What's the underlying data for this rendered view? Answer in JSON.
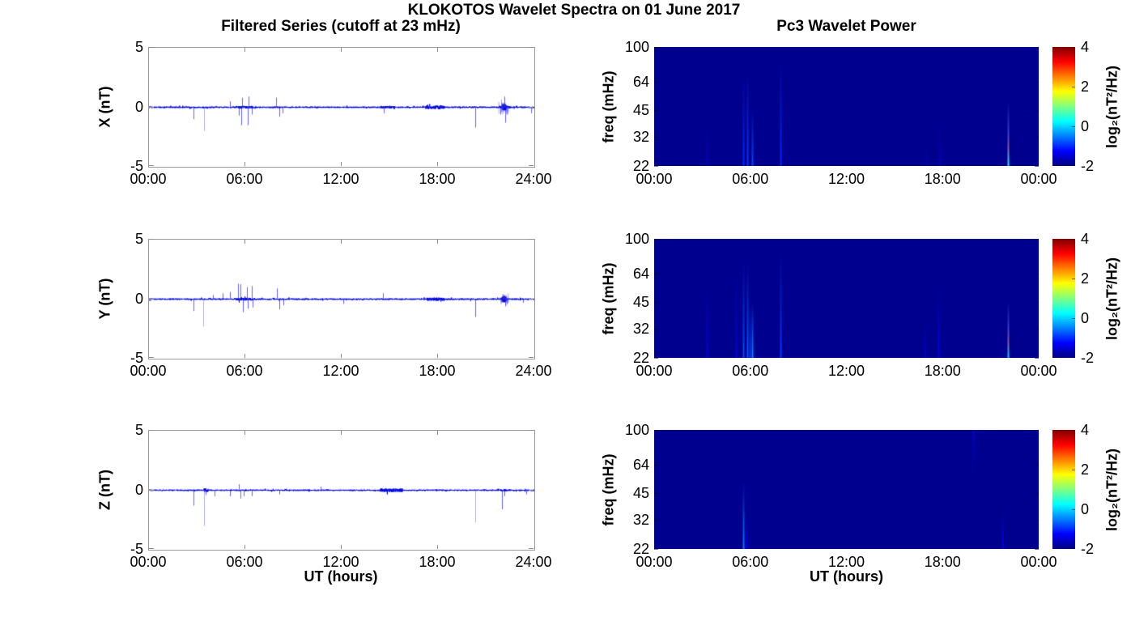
{
  "figure": {
    "title": "KLOKOTOS Wavelet Spectra on 01 June 2017",
    "left_column_title": "Filtered Series (cutoff at 23 mHz)",
    "right_column_title": "Pc3 Wavelet Power",
    "xlabel": "UT (hours)"
  },
  "chart_data": {
    "type": "multi-panel",
    "layout_hint": "3 rows x 2 columns; left column band-pass filtered magnetometer time series, right column wavelet power spectrograms with jet colorbars",
    "time_axis": {
      "range_hours": [
        0,
        24
      ],
      "ticks_left": [
        "00:00",
        "06:00",
        "12:00",
        "18:00",
        "24:00"
      ],
      "ticks_right": [
        "00:00",
        "06:00",
        "12:00",
        "18:00",
        "00:00"
      ],
      "xlabel": "UT (hours)"
    },
    "timeseries_yaxis": {
      "ylim": [
        -5,
        5
      ],
      "ticks": [
        "5",
        "0",
        "-5"
      ]
    },
    "freq_axis": {
      "ylabel": "freq (mHz)",
      "scale": "log",
      "flim": [
        22,
        100
      ],
      "ticks": [
        100,
        64,
        45,
        32,
        22
      ]
    },
    "colorbar": {
      "label": "log₂(nT²/Hz)",
      "colormap": "jet",
      "range": [
        -2,
        4
      ],
      "ticks": [
        4,
        2,
        0,
        -2
      ]
    },
    "colors": {
      "line": "#0008DD",
      "spectrogram_background": "#00008F",
      "axis_box": "#9a9a9a"
    },
    "timeseries": [
      {
        "component": "X",
        "ylabel": "X (nT)",
        "type": "line",
        "noise_amp": 0.06,
        "spikes": [
          {
            "t": 2.75,
            "a": -1.0
          },
          {
            "t": 3.45,
            "a": -2.0
          },
          {
            "t": 5.05,
            "a": 0.5
          },
          {
            "t": 5.6,
            "a": -0.7
          },
          {
            "t": 5.75,
            "a": -1.5
          },
          {
            "t": 5.8,
            "a": 0.8
          },
          {
            "t": 6.15,
            "a": -1.5
          },
          {
            "t": 6.2,
            "a": 0.9
          },
          {
            "t": 6.4,
            "a": -0.6
          },
          {
            "t": 7.9,
            "a": 0.8
          },
          {
            "t": 8.1,
            "a": -0.8
          },
          {
            "t": 8.3,
            "a": -0.5
          },
          {
            "t": 14.6,
            "a": -0.5
          },
          {
            "t": 20.3,
            "a": -1.7
          },
          {
            "t": 21.9,
            "a": -0.6
          },
          {
            "t": 22.15,
            "a": 0.9
          },
          {
            "t": 22.2,
            "a": -1.3
          },
          {
            "t": 23.8,
            "a": -0.5
          }
        ],
        "dense_regions": [
          {
            "t0": 5.4,
            "t1": 6.5,
            "amp": 0.11
          },
          {
            "t0": 14.4,
            "t1": 15.3,
            "amp": 0.1
          },
          {
            "t0": 17.2,
            "t1": 18.4,
            "amp": 0.15
          },
          {
            "t0": 21.8,
            "t1": 22.5,
            "amp": 0.12
          }
        ],
        "burst": {
          "t": 22.12,
          "amp": 0.7,
          "halfwidth": 0.15
        }
      },
      {
        "component": "Y",
        "ylabel": "Y (nT)",
        "type": "line",
        "noise_amp": 0.06,
        "spikes": [
          {
            "t": 2.75,
            "a": -1.0
          },
          {
            "t": 3.4,
            "a": -2.3
          },
          {
            "t": 4.0,
            "a": 0.35
          },
          {
            "t": 4.6,
            "a": 0.5
          },
          {
            "t": 5.05,
            "a": 0.6
          },
          {
            "t": 5.55,
            "a": 1.3
          },
          {
            "t": 5.7,
            "a": 1.25
          },
          {
            "t": 5.85,
            "a": -1.1
          },
          {
            "t": 6.1,
            "a": 1.0
          },
          {
            "t": 6.15,
            "a": -0.8
          },
          {
            "t": 6.4,
            "a": 1.1
          },
          {
            "t": 6.45,
            "a": -0.7
          },
          {
            "t": 7.95,
            "a": 0.9
          },
          {
            "t": 8.1,
            "a": -0.85
          },
          {
            "t": 8.35,
            "a": -0.5
          },
          {
            "t": 12.1,
            "a": -0.4
          },
          {
            "t": 14.55,
            "a": 0.5
          },
          {
            "t": 20.3,
            "a": -1.5
          },
          {
            "t": 22.2,
            "a": -0.6
          },
          {
            "t": 23.3,
            "a": -0.3
          }
        ],
        "dense_regions": [
          {
            "t0": 5.4,
            "t1": 6.6,
            "amp": 0.12
          },
          {
            "t0": 17.3,
            "t1": 18.4,
            "amp": 0.14
          }
        ],
        "burst": {
          "t": 22.12,
          "amp": 0.5,
          "halfwidth": 0.12
        }
      },
      {
        "component": "Z",
        "ylabel": "Z (nT)",
        "type": "line",
        "noise_amp": 0.055,
        "spikes": [
          {
            "t": 2.75,
            "a": -1.3
          },
          {
            "t": 3.45,
            "a": -3.0
          },
          {
            "t": 3.55,
            "a": -0.4
          },
          {
            "t": 4.1,
            "a": -0.5
          },
          {
            "t": 5.05,
            "a": -0.5
          },
          {
            "t": 5.6,
            "a": 0.5
          },
          {
            "t": 5.7,
            "a": -0.7
          },
          {
            "t": 5.9,
            "a": -0.5
          },
          {
            "t": 6.4,
            "a": -0.5
          },
          {
            "t": 8.1,
            "a": -0.35
          },
          {
            "t": 10.7,
            "a": 0.3
          },
          {
            "t": 20.3,
            "a": -2.7
          },
          {
            "t": 22.0,
            "a": -1.6
          },
          {
            "t": 22.15,
            "a": -0.5
          },
          {
            "t": 23.5,
            "a": -0.35
          }
        ],
        "dense_regions": [
          {
            "t0": 3.4,
            "t1": 3.7,
            "amp": 0.18
          },
          {
            "t0": 14.4,
            "t1": 15.8,
            "amp": 0.15
          },
          {
            "t0": 21.9,
            "t1": 22.3,
            "amp": 0.11
          }
        ],
        "burst": null
      }
    ],
    "spectrograms": [
      {
        "component": "X",
        "streaks": [
          {
            "t": 3.3,
            "f": 38,
            "p": -1.6
          },
          {
            "t": 5.55,
            "f": 70,
            "p": -1.0
          },
          {
            "t": 5.8,
            "f": 72,
            "p": -0.9
          },
          {
            "t": 6.1,
            "f": 46,
            "p": -0.8
          },
          {
            "t": 7.9,
            "f": 85,
            "p": -1.0
          },
          {
            "t": 17.0,
            "f": 30,
            "p": -1.7
          },
          {
            "t": 17.8,
            "f": 40,
            "p": -1.6
          },
          {
            "t": 22.1,
            "f": 50,
            "p": 0.3,
            "warm_mid": true
          }
        ]
      },
      {
        "component": "Y",
        "streaks": [
          {
            "t": 3.3,
            "f": 55,
            "p": -1.4
          },
          {
            "t": 5.1,
            "f": 65,
            "p": -1.4
          },
          {
            "t": 5.55,
            "f": 75,
            "p": -0.8
          },
          {
            "t": 5.8,
            "f": 73,
            "p": -0.7
          },
          {
            "t": 5.95,
            "f": 45,
            "p": -0.9
          },
          {
            "t": 6.1,
            "f": 45,
            "p": -0.4
          },
          {
            "t": 7.9,
            "f": 85,
            "p": -0.9
          },
          {
            "t": 16.9,
            "f": 35,
            "p": -1.5
          },
          {
            "t": 17.75,
            "f": 55,
            "p": -1.3
          },
          {
            "t": 22.1,
            "f": 45,
            "p": 0.0,
            "warm_mid": true
          }
        ]
      },
      {
        "component": "Z",
        "streaks": [
          {
            "t": 5.55,
            "f": 52,
            "p": -0.5
          },
          {
            "t": 5.75,
            "f": 35,
            "p": -1.3
          },
          {
            "t": 19.9,
            "f_hi": 100,
            "f_lo": 55,
            "p": -1.5,
            "peak": "top"
          },
          {
            "t": 21.75,
            "f": 36,
            "p": -1.4
          }
        ]
      }
    ]
  }
}
